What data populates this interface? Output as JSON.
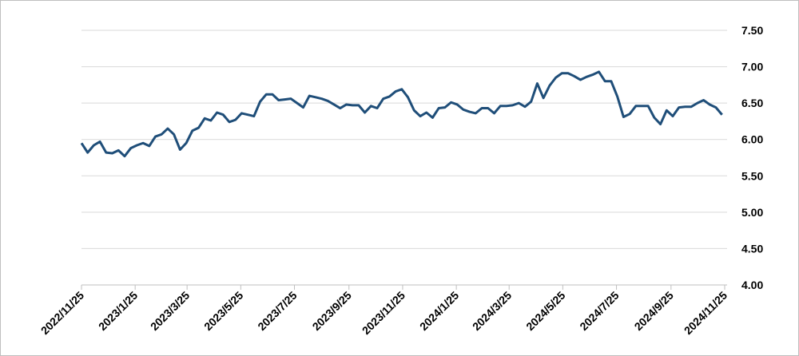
{
  "chart_data": {
    "type": "line",
    "x": [
      "2022/11/25",
      "2022/12/2",
      "2022/12/9",
      "2022/12/16",
      "2022/12/23",
      "2022/12/30",
      "2023/1/6",
      "2023/1/13",
      "2023/1/20",
      "2023/1/27",
      "2023/2/3",
      "2023/2/10",
      "2023/2/17",
      "2023/2/24",
      "2023/3/3",
      "2023/3/10",
      "2023/3/17",
      "2023/3/24",
      "2023/3/31",
      "2023/4/7",
      "2023/4/14",
      "2023/4/21",
      "2023/4/28",
      "2023/5/5",
      "2023/5/12",
      "2023/5/19",
      "2023/5/26",
      "2023/6/2",
      "2023/6/9",
      "2023/6/16",
      "2023/6/23",
      "2023/6/30",
      "2023/7/7",
      "2023/7/14",
      "2023/7/21",
      "2023/7/28",
      "2023/8/4",
      "2023/8/11",
      "2023/8/18",
      "2023/8/25",
      "2023/9/1",
      "2023/9/8",
      "2023/9/15",
      "2023/9/22",
      "2023/9/29",
      "2023/10/6",
      "2023/10/13",
      "2023/10/20",
      "2023/10/27",
      "2023/11/3",
      "2023/11/10",
      "2023/11/17",
      "2023/11/24",
      "2023/12/1",
      "2023/12/8",
      "2023/12/15",
      "2023/12/22",
      "2023/12/29",
      "2024/1/5",
      "2024/1/12",
      "2024/1/19",
      "2024/1/26",
      "2024/2/2",
      "2024/2/9",
      "2024/2/16",
      "2024/2/23",
      "2024/3/1",
      "2024/3/8",
      "2024/3/15",
      "2024/3/22",
      "2024/3/29",
      "2024/4/5",
      "2024/4/12",
      "2024/4/19",
      "2024/4/26",
      "2024/5/3",
      "2024/5/10",
      "2024/5/17",
      "2024/5/24",
      "2024/5/31",
      "2024/6/7",
      "2024/6/14",
      "2024/6/21",
      "2024/6/28",
      "2024/7/5",
      "2024/7/12",
      "2024/7/19",
      "2024/7/26",
      "2024/8/2",
      "2024/8/9",
      "2024/8/16",
      "2024/8/23",
      "2024/8/30",
      "2024/9/6",
      "2024/9/13",
      "2024/9/20",
      "2024/9/27",
      "2024/10/4",
      "2024/10/11",
      "2024/10/18",
      "2024/10/25",
      "2024/11/1",
      "2024/11/8",
      "2024/11/15",
      "2024/11/22"
    ],
    "series": [
      {
        "color": "#1f4e79",
        "values": [
          5.95,
          5.82,
          5.92,
          5.97,
          5.82,
          5.81,
          5.85,
          5.77,
          5.88,
          5.92,
          5.95,
          5.91,
          6.04,
          6.07,
          6.15,
          6.07,
          5.86,
          5.95,
          6.12,
          6.16,
          6.29,
          6.26,
          6.37,
          6.34,
          6.24,
          6.27,
          6.36,
          6.34,
          6.32,
          6.52,
          6.62,
          6.62,
          6.54,
          6.55,
          6.56,
          6.5,
          6.44,
          6.6,
          6.58,
          6.56,
          6.53,
          6.48,
          6.43,
          6.48,
          6.47,
          6.47,
          6.37,
          6.46,
          6.43,
          6.56,
          6.59,
          6.66,
          6.69,
          6.58,
          6.4,
          6.32,
          6.37,
          6.3,
          6.43,
          6.44,
          6.51,
          6.48,
          6.41,
          6.38,
          6.36,
          6.43,
          6.43,
          6.36,
          6.46,
          6.46,
          6.47,
          6.5,
          6.45,
          6.52,
          6.77,
          6.57,
          6.74,
          6.85,
          6.91,
          6.91,
          6.87,
          6.82,
          6.86,
          6.89,
          6.93,
          6.8,
          6.8,
          6.59,
          6.31,
          6.35,
          6.46,
          6.46,
          6.46,
          6.3,
          6.21,
          6.4,
          6.32,
          6.44,
          6.45,
          6.45,
          6.5,
          6.54,
          6.48,
          6.44,
          6.34
        ]
      }
    ],
    "xlim": [
      "2022/11/25",
      "2024/11/25"
    ],
    "xticks": [
      "2022/11/25",
      "2023/1/25",
      "2023/3/25",
      "2023/5/25",
      "2023/7/25",
      "2023/9/25",
      "2023/11/25",
      "2024/1/25",
      "2024/3/25",
      "2024/5/25",
      "2024/7/25",
      "2024/9/25",
      "2024/11/25"
    ],
    "ylim": [
      4.0,
      7.5
    ],
    "yticks": [
      {
        "value": 4.0,
        "label": "4.00"
      },
      {
        "value": 4.5,
        "label": "4.50"
      },
      {
        "value": 5.0,
        "label": "5.00"
      },
      {
        "value": 5.5,
        "label": "5.50"
      },
      {
        "value": 6.0,
        "label": "6.00"
      },
      {
        "value": 6.5,
        "label": "6.50"
      },
      {
        "value": 7.0,
        "label": "7.00"
      },
      {
        "value": 7.5,
        "label": "7.50"
      }
    ],
    "grid": true
  }
}
